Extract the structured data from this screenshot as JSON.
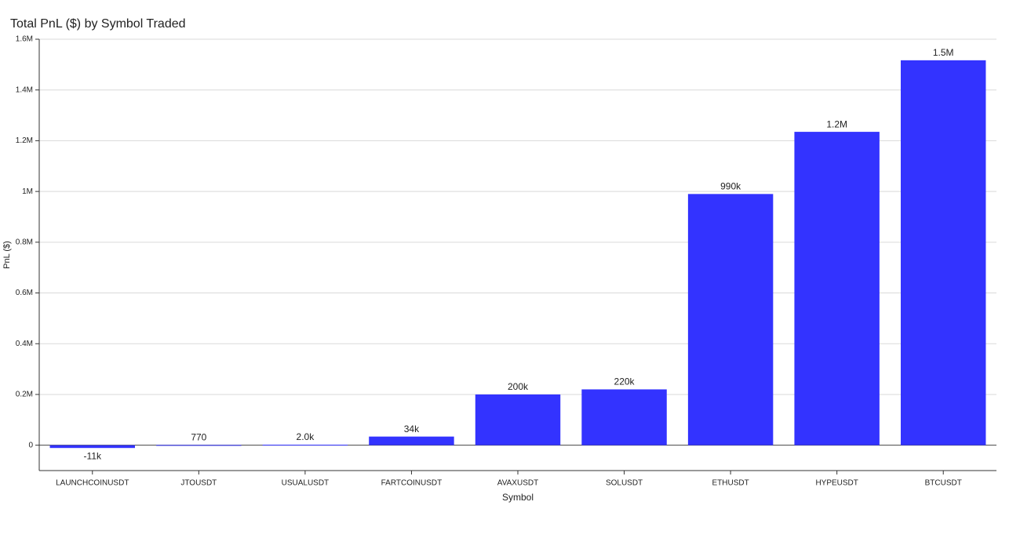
{
  "chart_data": {
    "type": "bar",
    "title": "Total PnL ($) by Symbol Traded",
    "x_label": "Symbol",
    "y_label": "PnL ($)",
    "categories": [
      "LAUNCHCOINUSDT",
      "JTOUSDT",
      "USUALUSDT",
      "FARTCOINUSDT",
      "AVAXUSDT",
      "SOLUSDT",
      "ETHUSDT",
      "HYPEUSDT",
      "BTCUSDT"
    ],
    "values": [
      -11000,
      770,
      2000,
      34000,
      200000,
      220000,
      990000,
      1235000,
      1517000
    ],
    "value_labels": [
      "-11k",
      "770",
      "2.0k",
      "34k",
      "200k",
      "220k",
      "990k",
      "1.2M",
      "1.5M"
    ],
    "color": "#3333ff",
    "ylim": [
      -100000,
      1600000
    ],
    "yticks": [
      0,
      {
        "value": 200000,
        "label": "0.2M"
      },
      {
        "value": 400000,
        "label": "0.4M"
      },
      {
        "value": 600000,
        "label": "0.6M"
      },
      {
        "value": 800000,
        "label": "0.8M"
      },
      {
        "value": 1000000,
        "label": "1M"
      },
      {
        "value": 1200000,
        "label": "1.2M"
      },
      {
        "value": 1400000,
        "label": "1.4M"
      },
      {
        "value": 1600000,
        "label": "1.6M"
      }
    ],
    "grid": true
  }
}
